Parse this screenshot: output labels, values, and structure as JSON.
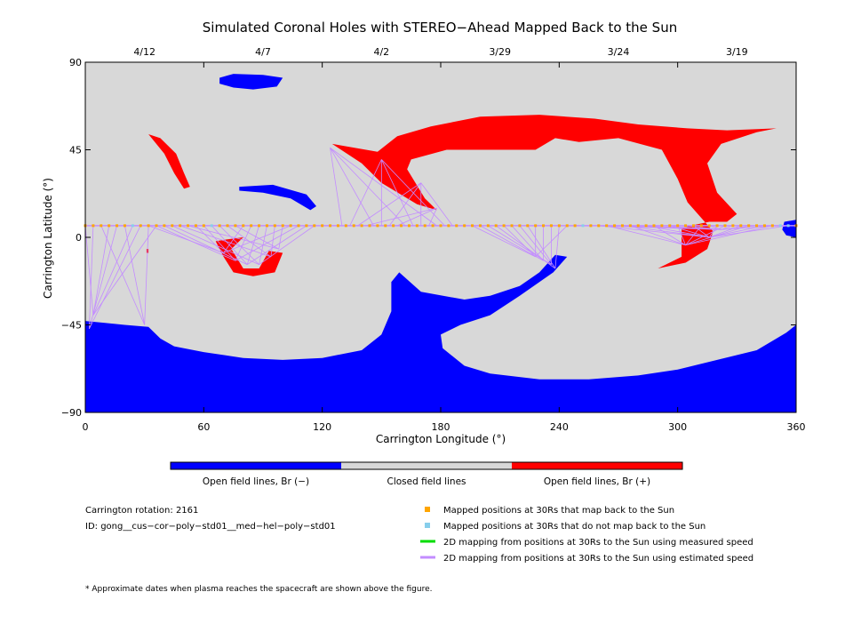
{
  "chart_data": {
    "type": "heatmap",
    "title": "Simulated Coronal Holes with STEREO−Ahead Mapped Back to the Sun",
    "xlabel": "Carrington Longitude (°)",
    "ylabel": "Carrington Latitude (°)",
    "xlim": [
      0,
      360
    ],
    "ylim": [
      -90,
      90
    ],
    "x_ticks": [
      "0",
      "60",
      "120",
      "180",
      "240",
      "300",
      "360"
    ],
    "y_ticks": [
      "90",
      "45",
      "0",
      "−45",
      "−90"
    ],
    "date_ticks": [
      {
        "label": "4/12",
        "lon": 30
      },
      {
        "label": "4/7",
        "lon": 90
      },
      {
        "label": "4/2",
        "lon": 150
      },
      {
        "label": "3/29",
        "lon": 210
      },
      {
        "label": "3/24",
        "lon": 270
      },
      {
        "label": "3/19",
        "lon": 330
      }
    ],
    "colorbar": [
      {
        "label": "Open field lines, Br (−)",
        "color": "#0000ff"
      },
      {
        "label": "Closed field lines",
        "color": "#d8d8d8"
      },
      {
        "label": "Open field lines, Br (+)",
        "color": "#ff0000"
      }
    ],
    "colors": {
      "negative": "#0000ff",
      "closed": "#d8d8d8",
      "positive": "#ff0000",
      "mapped": "#ffa500",
      "unmapped": "#87ceeb",
      "measured_line": "#00dd00",
      "estimated_line": "#c38cff"
    },
    "regions": [
      {
        "polarity": "negative",
        "name": "north-polar-small",
        "points": [
          [
            68,
            82
          ],
          [
            75,
            84
          ],
          [
            90,
            83.5
          ],
          [
            100,
            82
          ],
          [
            97,
            77.5
          ],
          [
            85,
            76
          ],
          [
            75,
            77
          ],
          [
            68,
            79
          ]
        ]
      },
      {
        "polarity": "negative",
        "name": "mid-north-arc",
        "points": [
          [
            78,
            26
          ],
          [
            95,
            27
          ],
          [
            112,
            22
          ],
          [
            117,
            16
          ],
          [
            114,
            14
          ],
          [
            104,
            20
          ],
          [
            90,
            23
          ],
          [
            78,
            24
          ]
        ]
      },
      {
        "polarity": "negative",
        "name": "south-polar",
        "points": [
          [
            0,
            -43
          ],
          [
            10,
            -44
          ],
          [
            20,
            -45
          ],
          [
            32,
            -46
          ],
          [
            38,
            -52
          ],
          [
            45,
            -56
          ],
          [
            60,
            -59
          ],
          [
            80,
            -62
          ],
          [
            100,
            -63
          ],
          [
            120,
            -62
          ],
          [
            140,
            -58
          ],
          [
            150,
            -50
          ],
          [
            155,
            -38
          ],
          [
            155,
            -23
          ],
          [
            159,
            -18
          ],
          [
            170,
            -28
          ],
          [
            192,
            -32
          ],
          [
            205,
            -30
          ],
          [
            220,
            -25
          ],
          [
            230,
            -18
          ],
          [
            238,
            -9
          ],
          [
            244,
            -10
          ],
          [
            237,
            -18
          ],
          [
            220,
            -30
          ],
          [
            205,
            -40
          ],
          [
            190,
            -45
          ],
          [
            180,
            -50
          ],
          [
            181,
            -57
          ],
          [
            192,
            -66
          ],
          [
            205,
            -70
          ],
          [
            230,
            -73
          ],
          [
            255,
            -73
          ],
          [
            280,
            -71
          ],
          [
            300,
            -68
          ],
          [
            320,
            -63
          ],
          [
            340,
            -58
          ],
          [
            355,
            -49
          ],
          [
            360,
            -45
          ],
          [
            360,
            -90
          ],
          [
            0,
            -90
          ]
        ]
      },
      {
        "polarity": "negative",
        "name": "right-edge-spot",
        "points": [
          [
            354,
            8
          ],
          [
            360,
            9
          ],
          [
            360,
            0
          ],
          [
            355,
            1
          ],
          [
            353,
            4
          ]
        ]
      },
      {
        "polarity": "positive",
        "name": "north-left-arc",
        "points": [
          [
            32,
            53
          ],
          [
            38,
            51
          ],
          [
            46,
            43
          ],
          [
            50,
            33
          ],
          [
            53,
            26
          ],
          [
            50,
            25
          ],
          [
            45,
            33
          ],
          [
            40,
            43
          ]
        ]
      },
      {
        "polarity": "positive",
        "name": "north-wide",
        "points": [
          [
            125,
            48
          ],
          [
            148,
            44
          ],
          [
            158,
            52
          ],
          [
            175,
            57
          ],
          [
            200,
            62
          ],
          [
            230,
            63
          ],
          [
            258,
            61
          ],
          [
            280,
            58
          ],
          [
            305,
            56
          ],
          [
            325,
            55
          ],
          [
            350,
            56
          ],
          [
            340,
            54
          ],
          [
            322,
            48
          ],
          [
            315,
            38
          ],
          [
            320,
            23
          ],
          [
            330,
            12
          ],
          [
            325,
            8
          ],
          [
            316,
            8
          ],
          [
            302,
            5
          ],
          [
            302,
            -10
          ],
          [
            290,
            -16
          ],
          [
            304,
            -13
          ],
          [
            315,
            -6
          ],
          [
            318,
            3
          ],
          [
            305,
            18
          ],
          [
            300,
            30
          ],
          [
            292,
            45
          ],
          [
            270,
            51
          ],
          [
            250,
            49
          ],
          [
            238,
            51
          ],
          [
            228,
            45
          ],
          [
            210,
            45
          ],
          [
            183,
            45
          ],
          [
            165,
            40
          ],
          [
            163,
            35
          ],
          [
            172,
            20
          ],
          [
            178,
            14
          ],
          [
            168,
            17
          ],
          [
            150,
            28
          ],
          [
            140,
            38
          ]
        ]
      },
      {
        "polarity": "positive",
        "name": "mid-crescent",
        "points": [
          [
            66,
            -2
          ],
          [
            70,
            -10
          ],
          [
            75,
            -18
          ],
          [
            85,
            -20
          ],
          [
            96,
            -18
          ],
          [
            100,
            -8
          ],
          [
            93,
            -7
          ],
          [
            88,
            -16
          ],
          [
            80,
            -16
          ],
          [
            74,
            -6
          ],
          [
            80,
            0
          ],
          [
            72,
            -1
          ]
        ]
      },
      {
        "polarity": "positive",
        "name": "tiny-red",
        "points": [
          [
            31,
            -6
          ],
          [
            32,
            -6
          ],
          [
            32,
            -8
          ],
          [
            31,
            -8
          ]
        ]
      }
    ],
    "mapped_points": {
      "lon": [
        0,
        4,
        8,
        12,
        16,
        20,
        24,
        28,
        32,
        36,
        40,
        44,
        48,
        52,
        56,
        60,
        64,
        68,
        72,
        76,
        80,
        84,
        88,
        92,
        96,
        100,
        104,
        108,
        112,
        116,
        120,
        124,
        128,
        132,
        136,
        140,
        144,
        148,
        152,
        156,
        160,
        164,
        168,
        172,
        176,
        180,
        184,
        188,
        192,
        196,
        200,
        204,
        208,
        212,
        216,
        220,
        224,
        228,
        232,
        236,
        240,
        244,
        248,
        252,
        256,
        260,
        264,
        268,
        272,
        276,
        280,
        284,
        288,
        292,
        296,
        300,
        304,
        308,
        312,
        316,
        320,
        324,
        328,
        332,
        336,
        340,
        344,
        348,
        352,
        356,
        360
      ],
      "lat": 6,
      "unmapped_lon": [
        24,
        26,
        64,
        252,
        352,
        356
      ]
    },
    "field_line_fans": [
      {
        "targets": [
          [
            70,
            -8
          ],
          [
            76,
            -12
          ],
          [
            82,
            -14
          ],
          [
            88,
            -14
          ],
          [
            94,
            -10
          ],
          [
            98,
            -6
          ]
        ],
        "from": [
          32,
          116
        ]
      },
      {
        "targets": [
          [
            124,
            46
          ],
          [
            150,
            40
          ],
          [
            170,
            28
          ],
          [
            178,
            15
          ]
        ],
        "from": [
          130,
          186
        ]
      },
      {
        "targets": [
          [
            228,
            -10
          ],
          [
            232,
            -12
          ],
          [
            236,
            -14
          ],
          [
            238,
            -16
          ]
        ],
        "from": [
          196,
          244
        ]
      },
      {
        "targets": [
          [
            322,
            4
          ],
          [
            316,
            0
          ],
          [
            304,
            -4
          ]
        ],
        "from": [
          256,
          358
        ]
      },
      {
        "targets": [
          [
            4,
            -40
          ],
          [
            2,
            -47
          ],
          [
            30,
            -45
          ]
        ],
        "from": [
          0,
          36
        ]
      }
    ],
    "legend": [
      {
        "label": "Mapped positions at 30Rs that map back to the Sun",
        "kind": "square",
        "color": "#ffa500"
      },
      {
        "label": "Mapped positions at 30Rs that do not map back to the Sun",
        "kind": "square",
        "color": "#87ceeb"
      },
      {
        "label": "2D mapping from positions at 30Rs to the Sun using measured speed",
        "kind": "line",
        "color": "#00dd00"
      },
      {
        "label": "2D mapping from positions at 30Rs to the Sun using estimated speed",
        "kind": "line",
        "color": "#c38cff"
      }
    ],
    "info": {
      "rotation": "Carrington rotation: 2161",
      "id": "ID: gong__cus−cor−poly−std01__med−hel−poly−std01"
    },
    "footnote": "* Approximate dates when plasma reaches the spacecraft are shown above the figure."
  }
}
